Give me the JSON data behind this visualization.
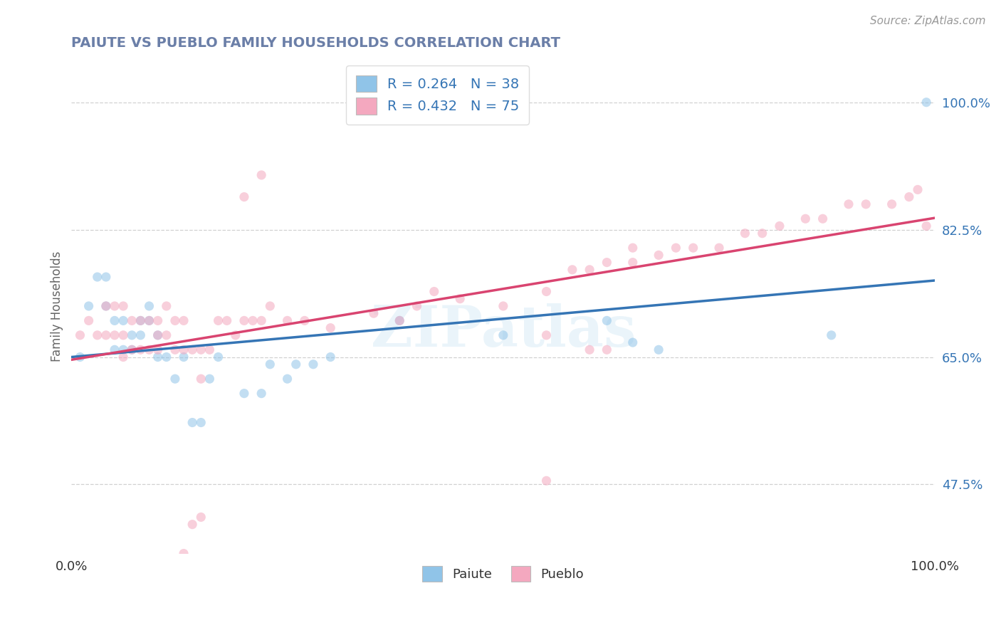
{
  "title": "PAIUTE VS PUEBLO FAMILY HOUSEHOLDS CORRELATION CHART",
  "source": "Source: ZipAtlas.com",
  "ylabel": "Family Households",
  "xlim": [
    0,
    1
  ],
  "ylim": [
    0.38,
    1.06
  ],
  "yticks": [
    0.475,
    0.65,
    0.825,
    1.0
  ],
  "ytick_labels": [
    "47.5%",
    "65.0%",
    "82.5%",
    "100.0%"
  ],
  "xticks": [
    0.0,
    0.1,
    0.2,
    0.3,
    0.4,
    0.5,
    0.6,
    0.7,
    0.8,
    0.9,
    1.0
  ],
  "xtick_labels": [
    "0.0%",
    "",
    "",
    "",
    "",
    "",
    "",
    "",
    "",
    "",
    "100.0%"
  ],
  "paiute_color": "#90c4e8",
  "pueblo_color": "#f4a8bf",
  "paiute_line_color": "#3575b5",
  "pueblo_line_color": "#d94470",
  "paiute_R": 0.264,
  "paiute_N": 38,
  "pueblo_R": 0.432,
  "pueblo_N": 75,
  "legend_text_color": "#3575b5",
  "title_color": "#6b7fa8",
  "paiute_x": [
    0.01,
    0.02,
    0.03,
    0.04,
    0.04,
    0.05,
    0.05,
    0.06,
    0.06,
    0.07,
    0.07,
    0.08,
    0.08,
    0.09,
    0.09,
    0.1,
    0.1,
    0.11,
    0.12,
    0.13,
    0.14,
    0.15,
    0.16,
    0.17,
    0.2,
    0.22,
    0.23,
    0.25,
    0.26,
    0.28,
    0.3,
    0.38,
    0.5,
    0.62,
    0.65,
    0.68,
    0.88,
    0.99
  ],
  "paiute_y": [
    0.65,
    0.72,
    0.76,
    0.76,
    0.72,
    0.66,
    0.7,
    0.66,
    0.7,
    0.66,
    0.68,
    0.68,
    0.7,
    0.7,
    0.72,
    0.65,
    0.68,
    0.65,
    0.62,
    0.65,
    0.56,
    0.56,
    0.62,
    0.65,
    0.6,
    0.6,
    0.64,
    0.62,
    0.64,
    0.64,
    0.65,
    0.7,
    0.68,
    0.7,
    0.67,
    0.66,
    0.68,
    1.0
  ],
  "pueblo_x": [
    0.01,
    0.02,
    0.03,
    0.04,
    0.04,
    0.05,
    0.05,
    0.06,
    0.06,
    0.06,
    0.07,
    0.07,
    0.08,
    0.08,
    0.09,
    0.09,
    0.1,
    0.1,
    0.1,
    0.11,
    0.11,
    0.12,
    0.12,
    0.13,
    0.13,
    0.14,
    0.15,
    0.15,
    0.16,
    0.17,
    0.18,
    0.19,
    0.2,
    0.21,
    0.22,
    0.23,
    0.25,
    0.27,
    0.3,
    0.35,
    0.38,
    0.4,
    0.42,
    0.45,
    0.5,
    0.55,
    0.58,
    0.6,
    0.62,
    0.65,
    0.65,
    0.68,
    0.7,
    0.72,
    0.75,
    0.78,
    0.8,
    0.82,
    0.85,
    0.87,
    0.9,
    0.92,
    0.95,
    0.97,
    0.98,
    0.99,
    0.55,
    0.6,
    0.62,
    0.2,
    0.22,
    0.55,
    0.15,
    0.14,
    0.13
  ],
  "pueblo_y": [
    0.68,
    0.7,
    0.68,
    0.68,
    0.72,
    0.68,
    0.72,
    0.65,
    0.68,
    0.72,
    0.66,
    0.7,
    0.66,
    0.7,
    0.66,
    0.7,
    0.66,
    0.68,
    0.7,
    0.68,
    0.72,
    0.66,
    0.7,
    0.66,
    0.7,
    0.66,
    0.62,
    0.66,
    0.66,
    0.7,
    0.7,
    0.68,
    0.7,
    0.7,
    0.7,
    0.72,
    0.7,
    0.7,
    0.69,
    0.71,
    0.7,
    0.72,
    0.74,
    0.73,
    0.72,
    0.74,
    0.77,
    0.77,
    0.78,
    0.8,
    0.78,
    0.79,
    0.8,
    0.8,
    0.8,
    0.82,
    0.82,
    0.83,
    0.84,
    0.84,
    0.86,
    0.86,
    0.86,
    0.87,
    0.88,
    0.83,
    0.68,
    0.66,
    0.66,
    0.87,
    0.9,
    0.48,
    0.43,
    0.42,
    0.38
  ],
  "watermark": "ZIPatlas",
  "background_color": "#ffffff",
  "grid_color": "#cccccc",
  "marker_size": 90,
  "marker_alpha": 0.55
}
